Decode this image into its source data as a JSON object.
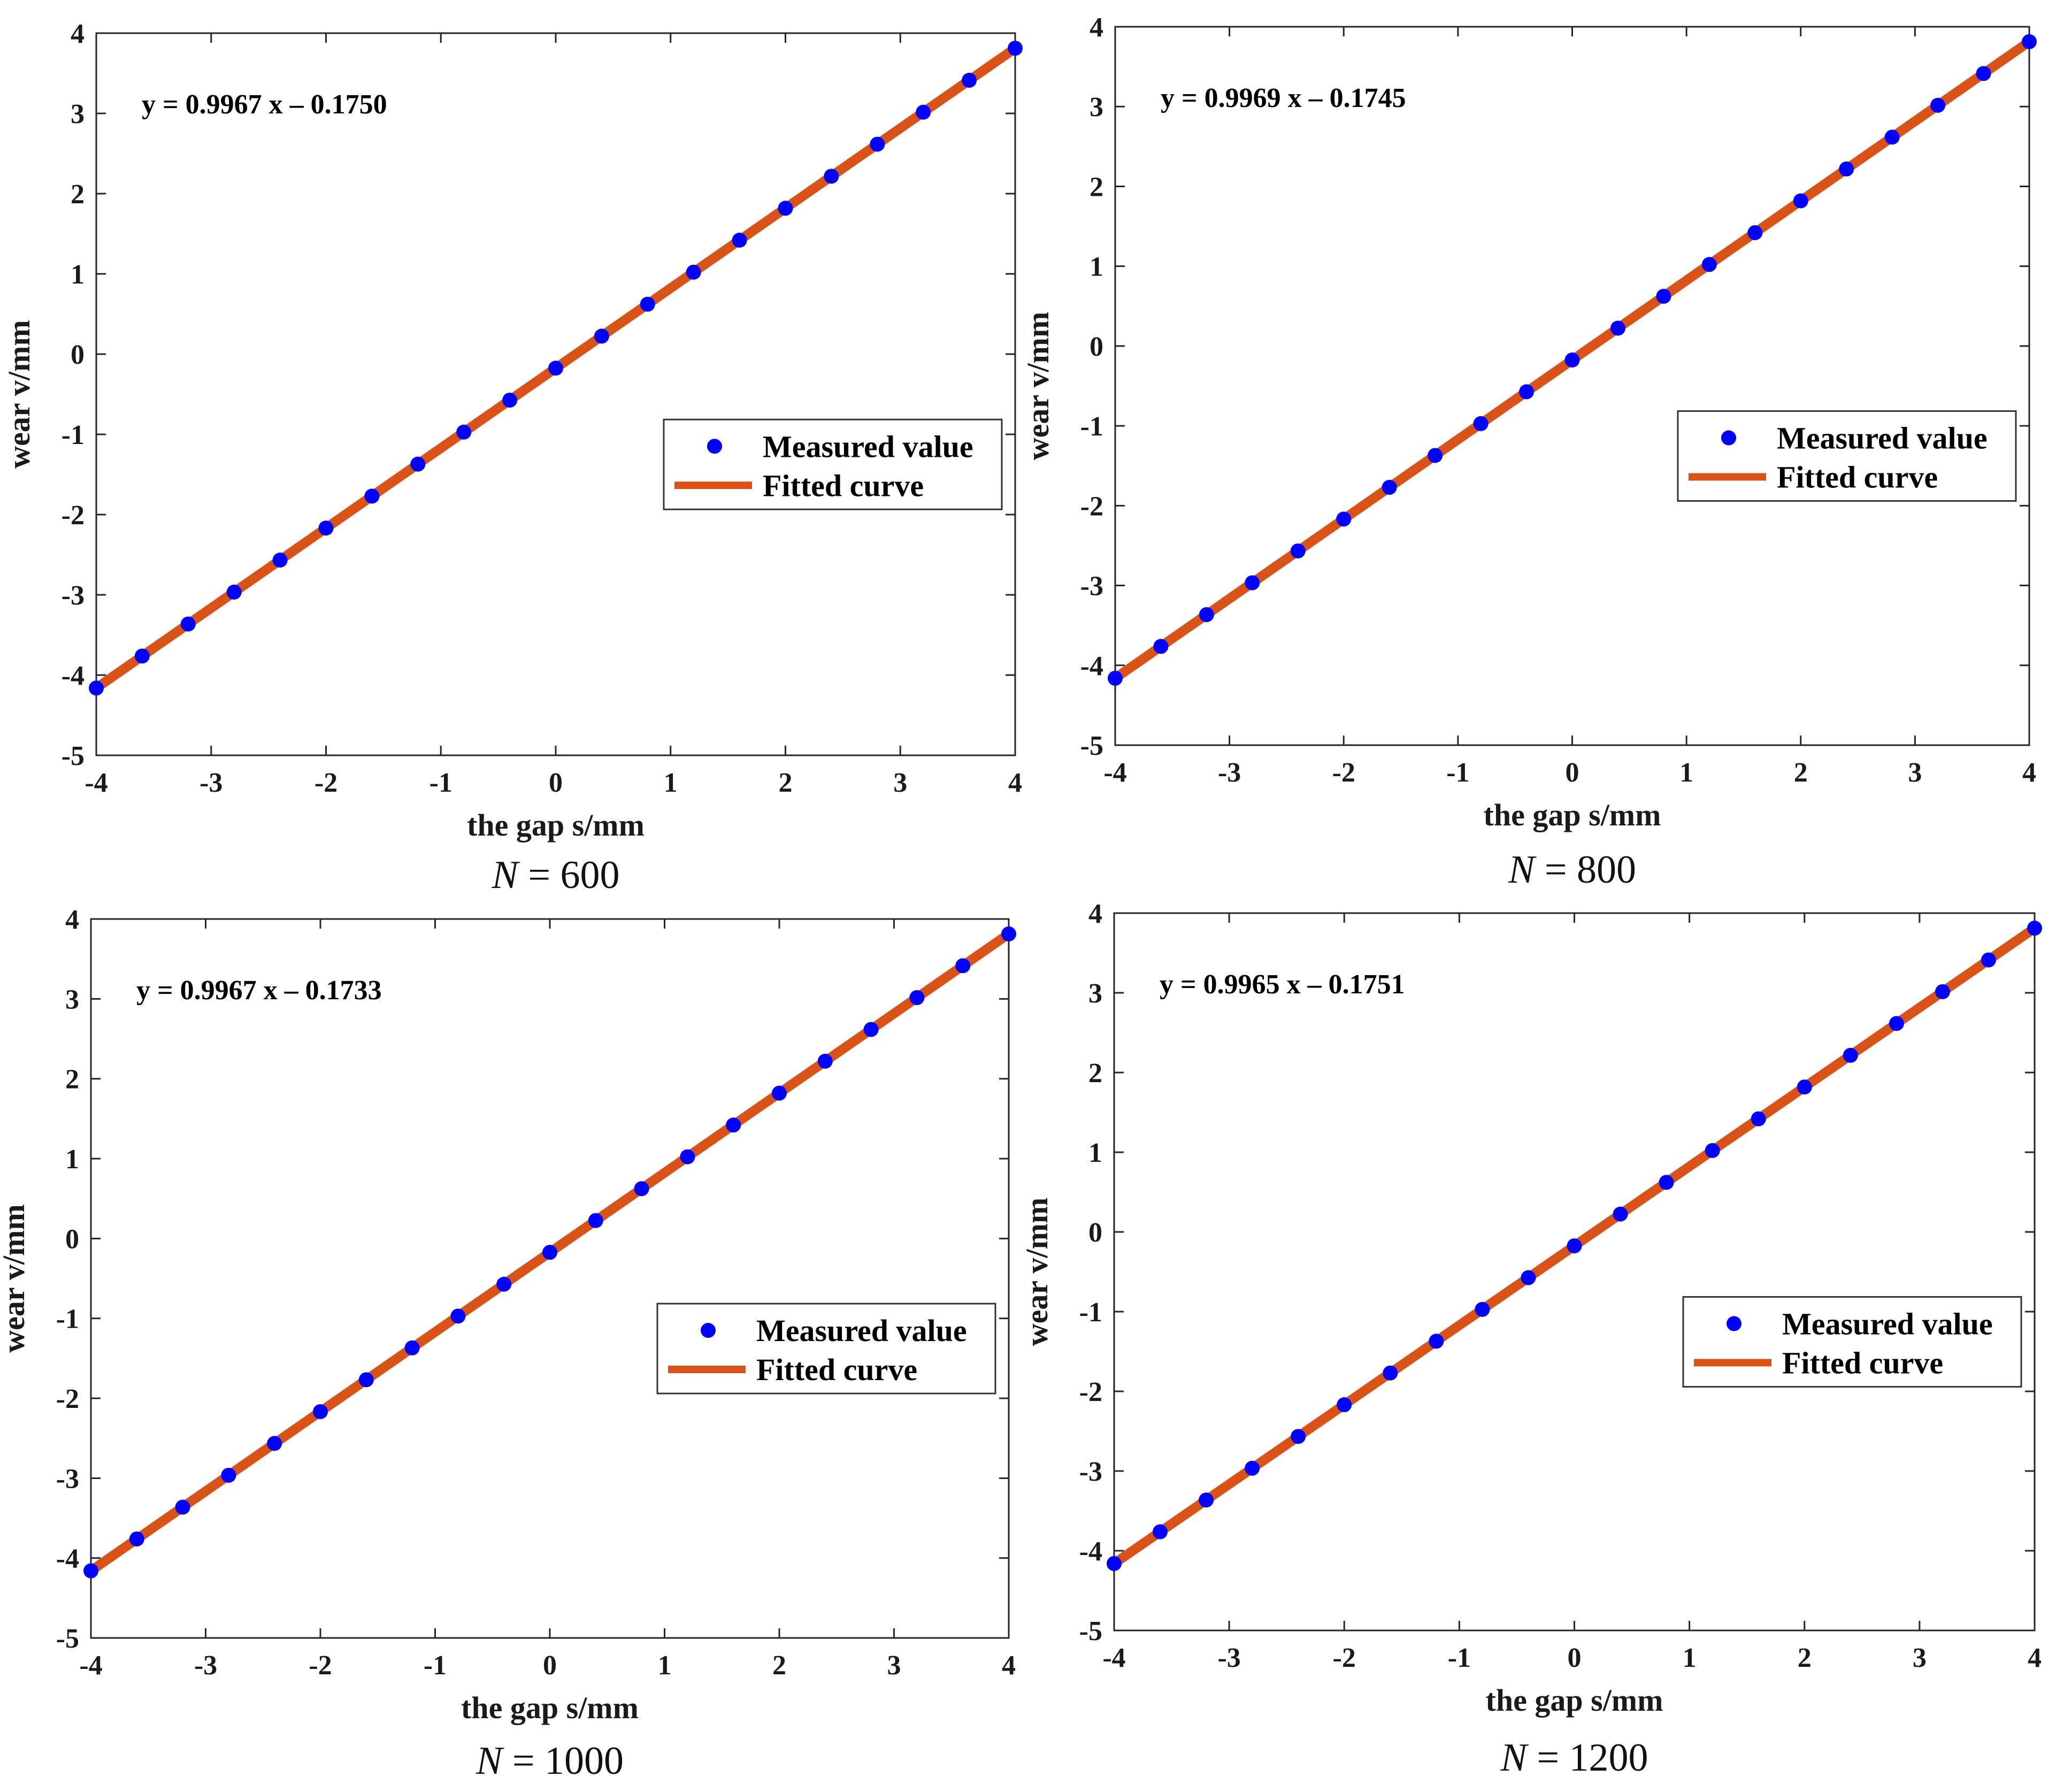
{
  "colors": {
    "marker": "#0000ff",
    "line": "#d95319",
    "axis": "#262626",
    "legend_border": "#333333"
  },
  "legend": {
    "marker_label": "Measured value",
    "line_label": "Fitted curve"
  },
  "chart_data": [
    {
      "type": "scatter",
      "caption_var": "N",
      "caption_value": "= 600",
      "equation": "y = 0.9967 x – 0.1750",
      "slope": 0.9967,
      "intercept": -0.175,
      "xlabel": "the gap s/mm",
      "ylabel": "wear v/mm",
      "xlim": [
        -4,
        4
      ],
      "ylim": [
        -5,
        4
      ],
      "xticks": [
        "-4",
        "-3",
        "-2",
        "-1",
        "0",
        "1",
        "2",
        "3",
        "4"
      ],
      "yticks": [
        "-5",
        "-4",
        "-3",
        "-2",
        "-1",
        "0",
        "1",
        "2",
        "3",
        "4"
      ],
      "x": [
        -4,
        -3.6,
        -3.2,
        -2.8,
        -2.4,
        -2,
        -1.6,
        -1.2,
        -0.8,
        -0.4,
        0,
        0.4,
        0.8,
        1.2,
        1.6,
        2,
        2.4,
        2.8,
        3.2,
        3.6,
        4
      ],
      "y": [
        -4.162,
        -3.763,
        -3.364,
        -2.966,
        -2.567,
        -2.168,
        -1.77,
        -1.371,
        -0.972,
        -0.574,
        -0.175,
        0.224,
        0.622,
        1.021,
        1.42,
        1.818,
        2.217,
        2.616,
        3.015,
        3.413,
        3.812
      ],
      "series": [
        {
          "name": "Measured value",
          "kind": "markers"
        },
        {
          "name": "Fitted curve",
          "kind": "line"
        }
      ],
      "legend_position": "center-right"
    },
    {
      "type": "scatter",
      "caption_var": "N",
      "caption_value": "= 800",
      "equation": "y = 0.9969 x – 0.1745",
      "slope": 0.9969,
      "intercept": -0.1745,
      "xlabel": "the gap s/mm",
      "ylabel": "wear v/mm",
      "xlim": [
        -4,
        4
      ],
      "ylim": [
        -5,
        4
      ],
      "xticks": [
        "-4",
        "-3",
        "-2",
        "-1",
        "0",
        "1",
        "2",
        "3",
        "4"
      ],
      "yticks": [
        "-5",
        "-4",
        "-3",
        "-2",
        "-1",
        "0",
        "1",
        "2",
        "3",
        "4"
      ],
      "x": [
        -4,
        -3.6,
        -3.2,
        -2.8,
        -2.4,
        -2,
        -1.6,
        -1.2,
        -0.8,
        -0.4,
        0,
        0.4,
        0.8,
        1.2,
        1.6,
        2,
        2.4,
        2.8,
        3.2,
        3.6,
        4
      ],
      "y": [
        -4.162,
        -3.763,
        -3.365,
        -2.966,
        -2.567,
        -2.168,
        -1.77,
        -1.371,
        -0.972,
        -0.573,
        -0.175,
        0.224,
        0.623,
        1.022,
        1.42,
        1.819,
        2.218,
        2.617,
        3.016,
        3.414,
        3.813
      ],
      "series": [
        {
          "name": "Measured value",
          "kind": "markers"
        },
        {
          "name": "Fitted curve",
          "kind": "line"
        }
      ],
      "legend_position": "center-right"
    },
    {
      "type": "scatter",
      "caption_var": "N",
      "caption_value": "= 1000",
      "equation": "y = 0.9967 x – 0.1733",
      "slope": 0.9967,
      "intercept": -0.1733,
      "xlabel": "the gap s/mm",
      "ylabel": "wear v/mm",
      "xlim": [
        -4,
        4
      ],
      "ylim": [
        -5,
        4
      ],
      "xticks": [
        "-4",
        "-3",
        "-2",
        "-1",
        "0",
        "1",
        "2",
        "3",
        "4"
      ],
      "yticks": [
        "-5",
        "-4",
        "-3",
        "-2",
        "-1",
        "0",
        "1",
        "2",
        "3",
        "4"
      ],
      "x": [
        -4,
        -3.6,
        -3.2,
        -2.8,
        -2.4,
        -2,
        -1.6,
        -1.2,
        -0.8,
        -0.4,
        0,
        0.4,
        0.8,
        1.2,
        1.6,
        2,
        2.4,
        2.8,
        3.2,
        3.6,
        4
      ],
      "y": [
        -4.16,
        -3.761,
        -3.363,
        -2.964,
        -2.565,
        -2.167,
        -1.768,
        -1.369,
        -0.971,
        -0.572,
        -0.173,
        0.225,
        0.624,
        1.023,
        1.421,
        1.82,
        2.22,
        2.617,
        3.016,
        3.415,
        3.813
      ],
      "series": [
        {
          "name": "Measured value",
          "kind": "markers"
        },
        {
          "name": "Fitted curve",
          "kind": "line"
        }
      ],
      "legend_position": "center-right"
    },
    {
      "type": "scatter",
      "caption_var": "N",
      "caption_value": "= 1200",
      "equation": "y = 0.9965 x – 0.1751",
      "slope": 0.9965,
      "intercept": -0.1751,
      "xlabel": "the gap s/mm",
      "ylabel": "wear v/mm",
      "xlim": [
        -4,
        4
      ],
      "ylim": [
        -5,
        4
      ],
      "xticks": [
        "-4",
        "-3",
        "-2",
        "-1",
        "0",
        "1",
        "2",
        "3",
        "4"
      ],
      "yticks": [
        "-5",
        "-4",
        "-3",
        "-2",
        "-1",
        "0",
        "1",
        "2",
        "3",
        "4"
      ],
      "x": [
        -4,
        -3.6,
        -3.2,
        -2.8,
        -2.4,
        -2,
        -1.6,
        -1.2,
        -0.8,
        -0.4,
        0,
        0.4,
        0.8,
        1.2,
        1.6,
        2,
        2.4,
        2.8,
        3.2,
        3.6,
        4
      ],
      "y": [
        -4.161,
        -3.762,
        -3.364,
        -2.965,
        -2.566,
        -2.168,
        -1.77,
        -1.371,
        -0.972,
        -0.574,
        -0.175,
        0.224,
        0.622,
        1.021,
        1.419,
        1.818,
        2.216,
        2.615,
        3.014,
        3.412,
        3.811
      ],
      "series": [
        {
          "name": "Measured value",
          "kind": "markers"
        },
        {
          "name": "Fitted curve",
          "kind": "line"
        }
      ],
      "legend_position": "center-right"
    }
  ]
}
